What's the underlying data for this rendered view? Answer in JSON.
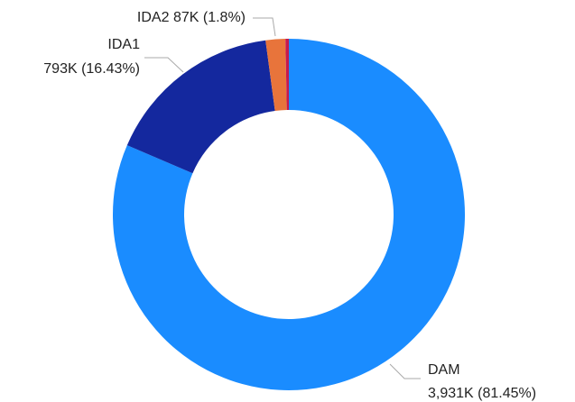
{
  "chart_data": {
    "type": "donut",
    "categories": [
      "DAM",
      "IDA1",
      "IDA2",
      null
    ],
    "values": [
      3931,
      793,
      87,
      15
    ],
    "value_labels": [
      "3,931K (81.45%)",
      "793K (16.43%)",
      "87K (1.8%)",
      null
    ],
    "colors": [
      "#1a8cff",
      "#14289e",
      "#e8743b",
      "#c41a4f"
    ]
  }
}
